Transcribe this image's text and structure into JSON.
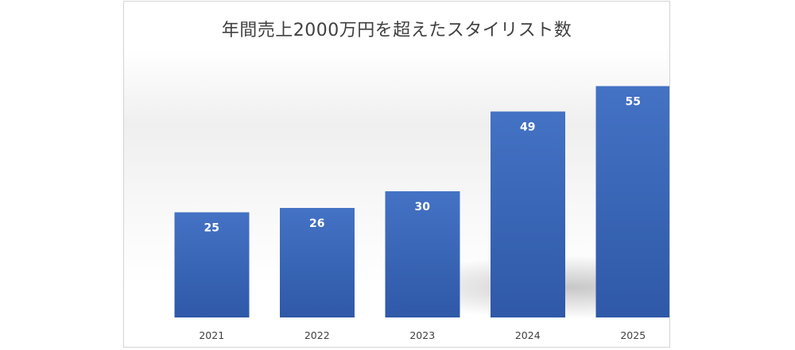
{
  "chart_data": {
    "type": "bar",
    "title": "年間売上2000万円を超えたスタイリスト数",
    "xlabel": "",
    "ylabel": "",
    "categories": [
      "2021",
      "2022",
      "2023",
      "2024",
      "2025"
    ],
    "values": [
      25,
      26,
      30,
      49,
      55
    ],
    "data_labels": [
      "25",
      "26",
      "30",
      "49",
      "55"
    ],
    "ylim": [
      0,
      60
    ],
    "grid": false,
    "legend": "none",
    "colors": {
      "bar_top": "#4472c4",
      "bar_bottom": "#2f59a8",
      "data_label": "#ffffff",
      "tick_label": "#404040",
      "title": "#404040"
    }
  }
}
